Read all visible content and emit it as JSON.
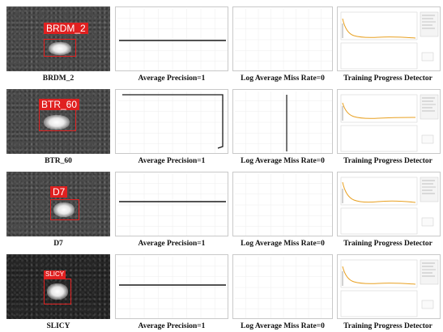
{
  "rows": [
    {
      "name": "BRDM_2",
      "detection_label": "BRDM_2",
      "average_precision": "Average Precision=1",
      "miss_rate": "Log Average Miss Rate=0",
      "training": "Training Progress Detector"
    },
    {
      "name": "BTR_60",
      "detection_label": "BTR_60",
      "average_precision": "Average Precision=1",
      "miss_rate": "Log Average Miss Rate=0",
      "training": "Training Progress Detector"
    },
    {
      "name": "D7",
      "detection_label": "D7",
      "average_precision": "Average Precision=1",
      "miss_rate": "Log Average Miss Rate=0",
      "training": "Training Progress Detector"
    },
    {
      "name": "SLICY",
      "detection_label": "SLICY",
      "average_precision": "Average Precision=1",
      "miss_rate": "Log Average Miss Rate=0",
      "training": "Training Progress Detector"
    }
  ],
  "colors": {
    "bbox": "#e02020",
    "curve": "#1a1a1a",
    "training_curve": "#e8a020",
    "grid": "#eeeeee"
  }
}
